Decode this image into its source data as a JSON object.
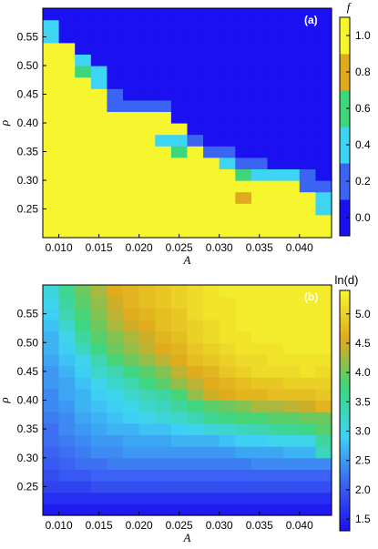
{
  "chart_data": [
    {
      "type": "heatmap",
      "panel_label": "(a)",
      "xlabel": "A",
      "ylabel": "ρ",
      "colorbar_label": "f",
      "x": [
        0.009,
        0.011,
        0.013,
        0.015,
        0.017,
        0.019,
        0.021,
        0.023,
        0.025,
        0.027,
        0.029,
        0.031,
        0.033,
        0.035,
        0.037,
        0.039,
        0.041,
        0.043
      ],
      "y": [
        0.21,
        0.23,
        0.25,
        0.27,
        0.29,
        0.31,
        0.33,
        0.35,
        0.37,
        0.39,
        0.41,
        0.43,
        0.45,
        0.47,
        0.49,
        0.51,
        0.53,
        0.55,
        0.57,
        0.59
      ],
      "xticks": [
        "0.010",
        "0.015",
        "0.020",
        "0.025",
        "0.030",
        "0.035",
        "0.040"
      ],
      "xtick_values": [
        0.01,
        0.015,
        0.02,
        0.025,
        0.03,
        0.035,
        0.04
      ],
      "yticks": [
        "0.25",
        "0.30",
        "0.35",
        "0.40",
        "0.45",
        "0.50",
        "0.55"
      ],
      "ytick_values": [
        0.25,
        0.3,
        0.35,
        0.4,
        0.45,
        0.5,
        0.55
      ],
      "xlim": [
        0.008,
        0.044
      ],
      "ylim": [
        0.2,
        0.6
      ],
      "colorbar_ticks": [
        "0.0",
        "0.2",
        "0.4",
        "0.6",
        "0.8",
        "1.0"
      ],
      "colorbar_tick_values": [
        0.0,
        0.2,
        0.4,
        0.6,
        0.8,
        1.0
      ],
      "colorbar_range": [
        -0.1,
        1.1
      ],
      "colormap": [
        "#1a10f0",
        "#3c64f2",
        "#3ed4f4",
        "#3ed67a",
        "#dfaa1e",
        "#f6f52e"
      ],
      "z": [
        [
          1,
          1,
          1,
          1,
          1,
          1,
          1,
          1,
          1,
          0.9,
          1,
          1,
          1,
          1,
          1,
          1,
          1,
          1
        ],
        [
          1,
          1,
          1,
          1,
          1,
          1,
          1,
          1,
          1,
          0.9,
          1,
          1,
          1,
          1,
          1,
          1,
          1,
          1
        ],
        [
          1,
          1,
          1,
          1,
          1,
          1,
          1,
          1,
          1,
          1,
          1,
          1,
          0.9,
          0.9,
          1,
          0.9,
          1,
          0.5
        ],
        [
          1,
          1,
          1,
          1,
          1,
          1,
          1,
          1,
          1,
          0.9,
          1,
          1,
          0.8,
          1,
          1,
          1,
          1,
          0.5
        ],
        [
          1,
          1,
          1,
          1,
          1,
          1,
          0.9,
          1,
          1,
          0.9,
          1,
          1,
          1,
          1,
          1,
          1,
          0.2,
          0.2
        ],
        [
          1,
          1,
          1,
          1,
          1,
          1,
          1,
          1,
          1,
          0.9,
          1,
          1,
          0.7,
          0.5,
          0.4,
          0.4,
          0.2,
          0
        ],
        [
          1,
          1,
          1,
          1,
          1,
          1,
          1,
          1,
          1,
          0.9,
          1,
          0.5,
          0.2,
          0.2,
          0,
          0,
          0,
          0
        ],
        [
          1,
          1,
          1,
          1,
          1,
          1,
          0.9,
          1,
          0.6,
          1,
          0.2,
          0.2,
          0,
          0,
          0,
          0,
          0,
          0
        ],
        [
          1,
          1,
          1,
          1,
          1,
          1,
          0.9,
          0.4,
          0.4,
          0.2,
          0,
          0,
          0,
          0,
          0,
          0,
          0,
          0
        ],
        [
          1,
          1,
          1,
          1,
          0.9,
          0.9,
          0.9,
          0.9,
          0.9,
          0,
          0,
          0,
          0,
          0,
          0,
          0,
          0,
          0
        ],
        [
          1,
          1,
          1,
          1,
          1,
          0.9,
          0.9,
          0.9,
          0,
          0,
          0,
          0,
          0,
          0,
          0,
          0,
          0,
          0
        ],
        [
          1,
          1,
          1,
          1,
          0.2,
          0.2,
          0.2,
          0.2,
          0,
          0,
          0,
          0,
          0,
          0,
          0,
          0,
          0,
          0
        ],
        [
          1,
          1,
          0.9,
          1,
          0.2,
          0,
          0,
          0,
          0,
          0,
          0,
          0,
          0,
          0,
          0,
          0,
          0,
          0
        ],
        [
          0.9,
          1,
          0.9,
          0.5,
          0,
          0,
          0,
          0,
          0,
          0,
          0,
          0,
          0,
          0,
          0,
          0,
          0,
          0
        ],
        [
          0.9,
          0.9,
          0.6,
          0.4,
          0,
          0,
          0,
          0,
          0,
          0,
          0,
          0,
          0,
          0,
          0,
          0,
          0,
          0
        ],
        [
          0.9,
          0.9,
          0.5,
          0,
          0,
          0,
          0,
          0,
          0,
          0,
          0,
          0,
          0,
          0,
          0,
          0,
          0,
          0
        ],
        [
          0.9,
          0.9,
          0,
          0,
          0,
          0,
          0,
          0,
          0,
          0,
          0,
          0,
          0,
          0,
          0,
          0,
          0,
          0
        ],
        [
          0.3,
          0,
          0,
          0,
          0,
          0,
          0,
          0,
          0,
          0,
          0,
          0,
          0,
          0,
          0,
          0,
          0,
          0
        ],
        [
          0.3,
          0,
          0,
          0,
          0,
          0,
          0,
          0,
          0,
          0,
          0,
          0,
          0,
          0,
          0,
          0,
          0,
          0
        ],
        [
          0,
          0,
          0,
          0,
          0,
          0,
          0,
          0,
          0,
          0,
          0,
          0,
          0,
          0,
          0,
          0,
          0,
          0
        ]
      ]
    },
    {
      "type": "heatmap",
      "panel_label": "(b)",
      "xlabel": "A",
      "ylabel": "ρ",
      "colorbar_label": "ln(d)",
      "x": [
        0.009,
        0.011,
        0.013,
        0.015,
        0.017,
        0.019,
        0.021,
        0.023,
        0.025,
        0.027,
        0.029,
        0.031,
        0.033,
        0.035,
        0.037,
        0.039,
        0.041,
        0.043
      ],
      "y": [
        0.21,
        0.23,
        0.25,
        0.27,
        0.29,
        0.31,
        0.33,
        0.35,
        0.37,
        0.39,
        0.41,
        0.43,
        0.45,
        0.47,
        0.49,
        0.51,
        0.53,
        0.55,
        0.57,
        0.59
      ],
      "xticks": [
        "0.010",
        "0.015",
        "0.020",
        "0.025",
        "0.030",
        "0.035",
        "0.040"
      ],
      "xtick_values": [
        0.01,
        0.015,
        0.02,
        0.025,
        0.03,
        0.035,
        0.04
      ],
      "yticks": [
        "0.25",
        "0.30",
        "0.35",
        "0.40",
        "0.45",
        "0.50",
        "0.55"
      ],
      "ytick_values": [
        0.25,
        0.3,
        0.35,
        0.4,
        0.45,
        0.5,
        0.55
      ],
      "xlim": [
        0.008,
        0.044
      ],
      "ylim": [
        0.2,
        0.6
      ],
      "colorbar_ticks": [
        "1.5",
        "2.0",
        "2.5",
        "3.0",
        "3.5",
        "4.0",
        "4.5",
        "5.0"
      ],
      "colorbar_tick_values": [
        1.5,
        2.0,
        2.5,
        3.0,
        3.5,
        4.0,
        4.5,
        5.0
      ],
      "colorbar_range": [
        1.3,
        5.4
      ],
      "colormap": [
        "#1a10f0",
        "#3c64f2",
        "#3ed4f4",
        "#3ed67a",
        "#dfaa1e",
        "#f6f52e"
      ],
      "z": [
        [
          1.4,
          1.4,
          1.4,
          1.4,
          1.4,
          1.4,
          1.4,
          1.4,
          1.4,
          1.4,
          1.4,
          1.4,
          1.4,
          1.4,
          1.4,
          1.4,
          1.4,
          1.4
        ],
        [
          1.6,
          1.6,
          1.6,
          1.6,
          1.6,
          1.6,
          1.6,
          1.6,
          1.6,
          1.6,
          1.6,
          1.6,
          1.6,
          1.6,
          1.6,
          1.6,
          1.6,
          1.6
        ],
        [
          1.8,
          1.8,
          1.8,
          1.9,
          1.9,
          1.9,
          1.9,
          1.9,
          1.9,
          1.9,
          1.9,
          1.9,
          1.9,
          1.9,
          1.9,
          1.9,
          1.9,
          1.9
        ],
        [
          1.9,
          2.0,
          2.0,
          2.1,
          2.1,
          2.1,
          2.1,
          2.1,
          2.1,
          2.1,
          2.1,
          2.1,
          2.1,
          2.1,
          2.1,
          2.1,
          2.1,
          2.1
        ],
        [
          2.0,
          2.1,
          2.2,
          2.2,
          2.3,
          2.3,
          2.3,
          2.3,
          2.3,
          2.3,
          2.3,
          2.3,
          2.3,
          2.4,
          2.4,
          2.4,
          2.4,
          2.4
        ],
        [
          2.1,
          2.2,
          2.3,
          2.4,
          2.4,
          2.5,
          2.5,
          2.5,
          2.5,
          2.5,
          2.5,
          2.5,
          2.6,
          2.6,
          2.6,
          2.7,
          2.7,
          3.3
        ],
        [
          2.2,
          2.3,
          2.4,
          2.5,
          2.5,
          2.6,
          2.6,
          2.6,
          2.7,
          2.7,
          2.7,
          2.8,
          2.9,
          2.9,
          3.0,
          3.0,
          3.0,
          3.5
        ],
        [
          2.2,
          2.4,
          2.5,
          2.6,
          2.7,
          2.7,
          2.8,
          2.8,
          2.9,
          3.0,
          3.1,
          3.2,
          3.3,
          3.4,
          3.5,
          3.6,
          3.7,
          3.9
        ],
        [
          2.3,
          2.4,
          2.6,
          2.7,
          2.8,
          2.9,
          3.0,
          3.1,
          3.2,
          3.4,
          3.6,
          3.7,
          3.8,
          3.8,
          3.9,
          3.9,
          4.0,
          4.0
        ],
        [
          2.4,
          2.5,
          2.7,
          2.8,
          2.9,
          3.0,
          3.2,
          3.3,
          3.5,
          3.7,
          3.9,
          4.0,
          4.1,
          4.3,
          4.3,
          4.4,
          4.5,
          4.7
        ],
        [
          2.4,
          2.6,
          2.7,
          2.9,
          3.0,
          3.2,
          3.4,
          3.5,
          3.8,
          4.2,
          4.5,
          4.6,
          4.7,
          4.7,
          4.8,
          4.8,
          4.8,
          4.9
        ],
        [
          2.5,
          2.6,
          2.8,
          3.0,
          3.2,
          3.4,
          3.7,
          3.9,
          4.2,
          4.4,
          4.6,
          4.7,
          4.8,
          4.9,
          4.9,
          5.0,
          5.0,
          5.0
        ],
        [
          2.5,
          2.7,
          2.9,
          3.2,
          3.4,
          3.7,
          3.9,
          4.1,
          4.4,
          4.6,
          4.7,
          4.9,
          5.0,
          5.1,
          5.1,
          5.1,
          5.2,
          5.1
        ],
        [
          2.6,
          2.8,
          3.0,
          3.4,
          3.8,
          4.0,
          4.2,
          4.4,
          4.6,
          4.8,
          4.9,
          5.0,
          5.1,
          5.1,
          5.2,
          5.2,
          5.2,
          5.2
        ],
        [
          2.7,
          2.9,
          3.3,
          3.7,
          4.0,
          4.2,
          4.4,
          4.6,
          4.7,
          4.9,
          5.0,
          5.1,
          5.2,
          5.2,
          5.2,
          5.3,
          5.3,
          5.3
        ],
        [
          2.7,
          3.0,
          3.5,
          3.9,
          4.1,
          4.3,
          4.5,
          4.7,
          4.8,
          5.0,
          5.1,
          5.2,
          5.2,
          5.3,
          5.3,
          5.3,
          5.3,
          5.3
        ],
        [
          2.8,
          3.2,
          3.7,
          4.0,
          4.3,
          4.5,
          4.6,
          4.8,
          4.9,
          5.0,
          5.1,
          5.2,
          5.3,
          5.3,
          5.3,
          5.3,
          5.3,
          5.3
        ],
        [
          2.9,
          3.4,
          3.8,
          4.1,
          4.4,
          4.6,
          4.7,
          4.8,
          4.9,
          5.1,
          5.2,
          5.2,
          5.3,
          5.3,
          5.3,
          5.3,
          5.3,
          5.3
        ],
        [
          3.0,
          3.5,
          3.9,
          4.2,
          4.5,
          4.7,
          4.8,
          4.9,
          5.0,
          5.1,
          5.2,
          5.2,
          5.3,
          5.3,
          5.3,
          5.3,
          5.3,
          5.3
        ],
        [
          3.1,
          3.6,
          4.0,
          4.3,
          4.6,
          4.7,
          4.8,
          4.9,
          5.0,
          5.1,
          5.2,
          5.3,
          5.3,
          5.3,
          5.3,
          5.3,
          5.3,
          5.3
        ]
      ]
    }
  ]
}
